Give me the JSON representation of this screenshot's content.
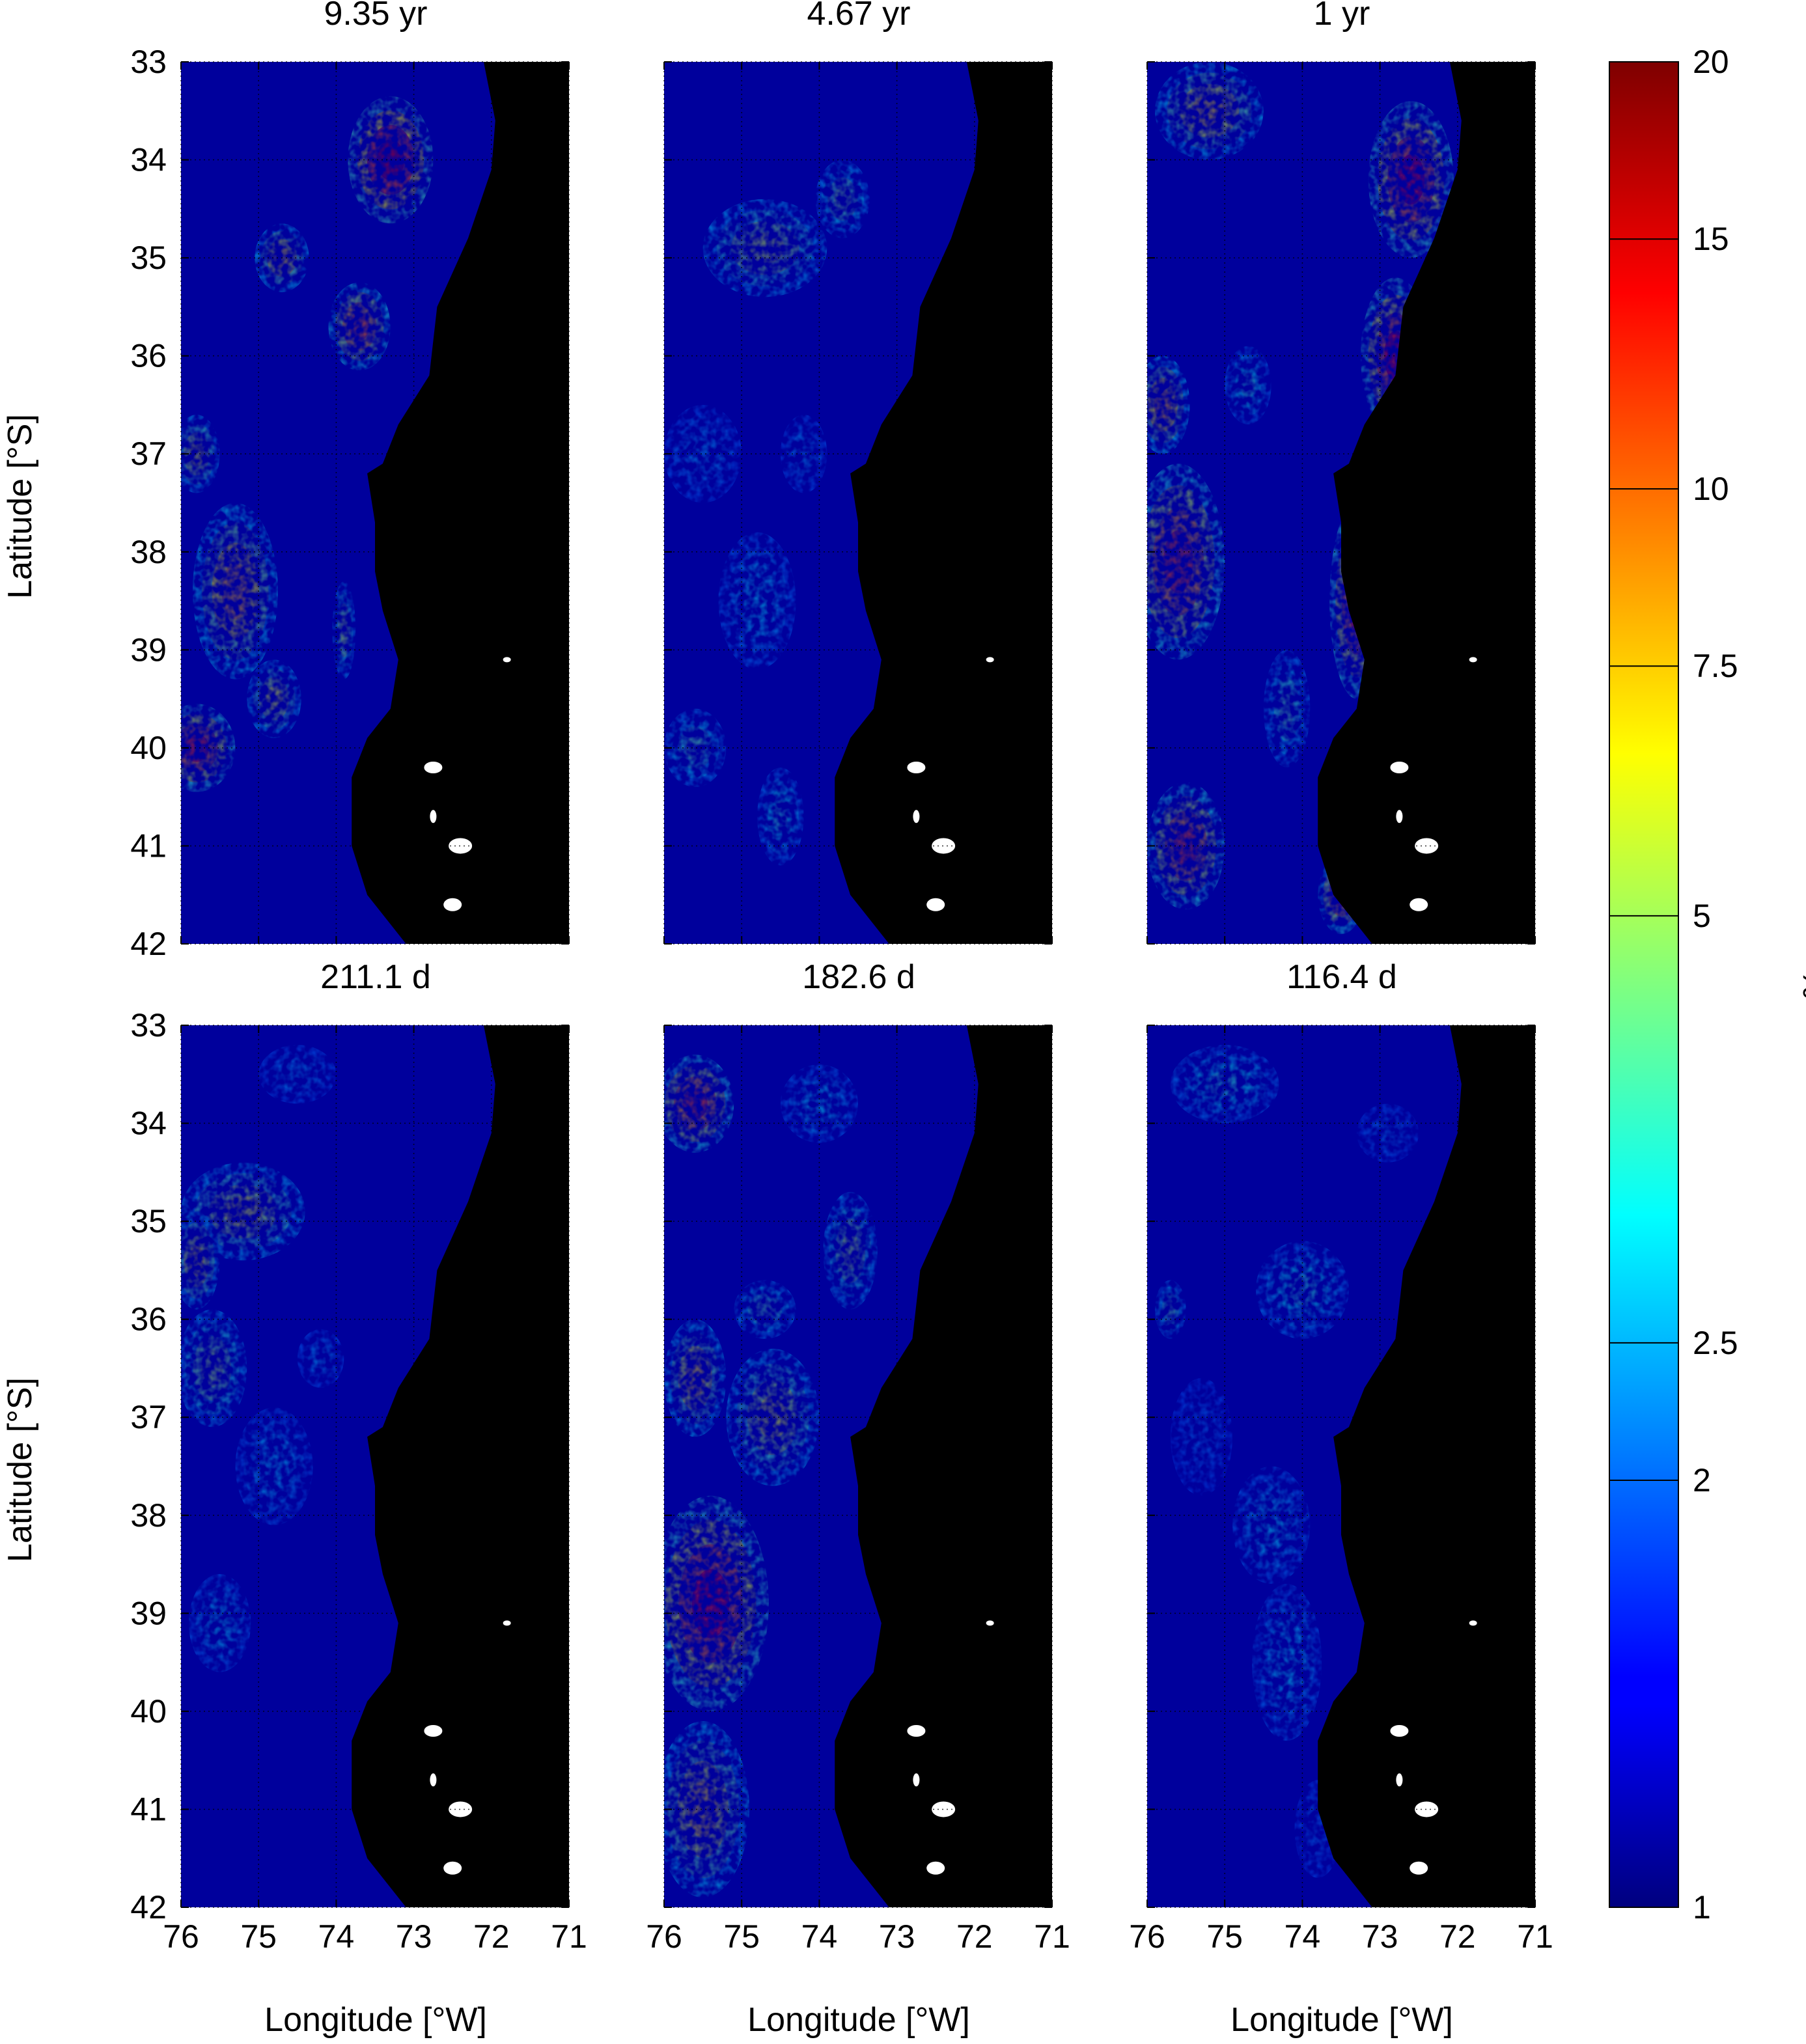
{
  "figure": {
    "panels": [
      {
        "title": "9.35 yr"
      },
      {
        "title": "4.67 yr"
      },
      {
        "title": "1 yr"
      },
      {
        "title": "211.1 d"
      },
      {
        "title": "182.6 d"
      },
      {
        "title": "116.4 d"
      }
    ],
    "ylabel": "Latitude [°S]",
    "xlabel": "Longitude [°W]",
    "lat_ticks": [
      "33",
      "34",
      "35",
      "36",
      "37",
      "38",
      "39",
      "40",
      "41",
      "42"
    ],
    "lon_ticks": [
      "76",
      "75",
      "74",
      "73",
      "72",
      "71"
    ],
    "colorbar": {
      "unit_label": "%",
      "tick_labels": [
        "1",
        "2",
        "2.5",
        "5",
        "7.5",
        "10",
        "15",
        "20"
      ]
    }
  },
  "chart_data": {
    "type": "heatmap",
    "colormap": "jet",
    "land_color": "#000000",
    "xlim": [
      76,
      71
    ],
    "ylim": [
      42,
      33
    ],
    "lat_ticks": [
      33,
      34,
      35,
      36,
      37,
      38,
      39,
      40,
      41,
      42
    ],
    "lon_ticks": [
      76,
      75,
      74,
      73,
      72,
      71
    ],
    "color_scale": {
      "min": 1,
      "max": 20,
      "scale": "log",
      "ticks": [
        1,
        2,
        2.5,
        5,
        7.5,
        10,
        15,
        20
      ]
    },
    "panels": [
      {
        "period": "9.35 yr",
        "blobs": [
          [
            73.3,
            34.0,
            0.55,
            0.65,
            15
          ],
          [
            73.7,
            35.7,
            0.4,
            0.45,
            10
          ],
          [
            75.8,
            40.0,
            0.5,
            0.45,
            12
          ],
          [
            75.3,
            38.4,
            0.55,
            0.9,
            8
          ],
          [
            75.8,
            37.0,
            0.3,
            0.4,
            6
          ],
          [
            74.7,
            35.0,
            0.35,
            0.35,
            7
          ],
          [
            74.8,
            39.5,
            0.35,
            0.4,
            6
          ],
          [
            73.9,
            38.8,
            0.15,
            0.5,
            5
          ]
        ]
      },
      {
        "period": "4.67 yr",
        "blobs": [
          [
            74.7,
            34.9,
            0.8,
            0.5,
            5.5
          ],
          [
            73.7,
            34.4,
            0.35,
            0.4,
            4.5
          ],
          [
            74.8,
            38.5,
            0.5,
            0.7,
            3
          ],
          [
            75.6,
            40.0,
            0.4,
            0.4,
            4
          ],
          [
            74.5,
            40.7,
            0.3,
            0.5,
            3.5
          ],
          [
            75.5,
            37.0,
            0.5,
            0.5,
            2.5
          ],
          [
            74.2,
            37.0,
            0.3,
            0.4,
            2.5
          ]
        ]
      },
      {
        "period": "1 yr",
        "blobs": [
          [
            72.6,
            34.2,
            0.55,
            0.8,
            13
          ],
          [
            72.8,
            36.0,
            0.45,
            0.8,
            13
          ],
          [
            73.3,
            38.5,
            0.35,
            1.0,
            12
          ],
          [
            75.6,
            38.1,
            0.6,
            1.0,
            11
          ],
          [
            75.5,
            41.0,
            0.5,
            0.65,
            11
          ],
          [
            75.2,
            33.5,
            0.7,
            0.5,
            7
          ],
          [
            73.5,
            41.5,
            0.3,
            0.4,
            10
          ],
          [
            75.8,
            36.5,
            0.35,
            0.5,
            8
          ],
          [
            74.2,
            39.6,
            0.3,
            0.6,
            4
          ],
          [
            74.7,
            36.3,
            0.3,
            0.4,
            3.5
          ]
        ]
      },
      {
        "period": "211.1 d",
        "blobs": [
          [
            75.2,
            34.9,
            0.8,
            0.5,
            6
          ],
          [
            75.8,
            35.4,
            0.3,
            0.5,
            6.5
          ],
          [
            75.6,
            36.5,
            0.45,
            0.6,
            5
          ],
          [
            74.8,
            37.5,
            0.5,
            0.6,
            2.8
          ],
          [
            75.5,
            39.1,
            0.4,
            0.5,
            3
          ],
          [
            74.2,
            36.4,
            0.3,
            0.3,
            2.5
          ],
          [
            74.5,
            33.5,
            0.5,
            0.3,
            2.5
          ]
        ]
      },
      {
        "period": "182.6 d",
        "blobs": [
          [
            75.4,
            38.9,
            0.75,
            1.1,
            13
          ],
          [
            75.6,
            33.8,
            0.5,
            0.5,
            11
          ],
          [
            74.6,
            37.0,
            0.6,
            0.7,
            6
          ],
          [
            75.5,
            41.0,
            0.6,
            0.9,
            7
          ],
          [
            73.6,
            35.3,
            0.35,
            0.6,
            5
          ],
          [
            74.7,
            35.9,
            0.4,
            0.3,
            4
          ],
          [
            74.0,
            33.8,
            0.5,
            0.4,
            3
          ],
          [
            75.6,
            36.6,
            0.4,
            0.6,
            7
          ]
        ]
      },
      {
        "period": "116.4 d",
        "blobs": [
          [
            75.0,
            33.6,
            0.7,
            0.4,
            3.5
          ],
          [
            74.0,
            35.7,
            0.6,
            0.5,
            3.5
          ],
          [
            74.4,
            38.1,
            0.5,
            0.6,
            3
          ],
          [
            74.2,
            39.5,
            0.45,
            0.8,
            3
          ],
          [
            75.7,
            35.9,
            0.2,
            0.3,
            4
          ],
          [
            75.3,
            37.2,
            0.4,
            0.6,
            2.2
          ],
          [
            72.9,
            34.1,
            0.4,
            0.3,
            2.3
          ],
          [
            73.8,
            41.2,
            0.3,
            0.5,
            2.2
          ]
        ]
      }
    ]
  }
}
